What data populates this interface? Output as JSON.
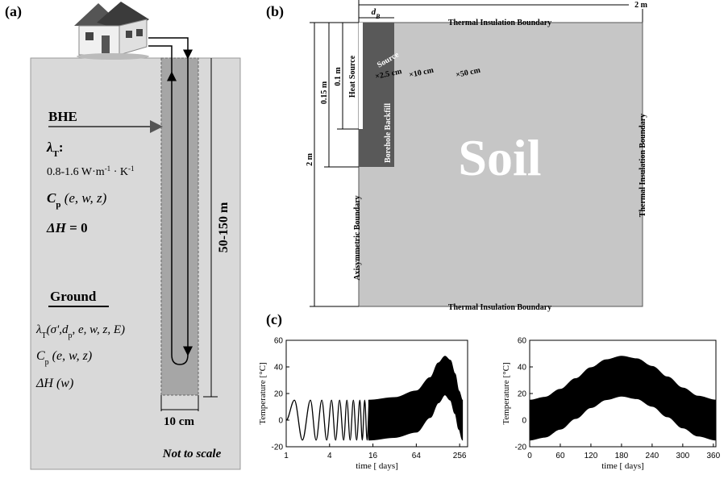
{
  "panel_a": {
    "label": "(a)",
    "bhe": "BHE",
    "lambda": [
      "λ",
      "T",
      ":"
    ],
    "lambda_range": [
      "0.8-1.6 W·m",
      "-1",
      " · K",
      "-1"
    ],
    "cp": [
      "C",
      "p",
      " (e, w, z)"
    ],
    "dh": [
      "ΔH",
      " = 0"
    ],
    "ground": "Ground",
    "g_lambda": [
      "λ",
      "T",
      "(σ',d",
      "p",
      ", e, w, z, E)"
    ],
    "g_cp": [
      "C",
      "p",
      " (e, w, z)"
    ],
    "g_dh": "ΔH (w)",
    "depth": "50-150 m",
    "diameter": "10 cm",
    "note": "Not to scale"
  },
  "panel_b": {
    "label": "(b)",
    "width": "2 m",
    "db": [
      "d",
      "B"
    ],
    "top": "Thermal Insulation Boundary",
    "bottom": "Thermal Insulation Boundary",
    "right": "Thermal Insulation Boundary",
    "left": "Axisymmetric Boundary",
    "soil": "Soil",
    "source": "Source",
    "heat_source": "Heat Source",
    "backfill": "Borehole Backfill",
    "p1": "×2.5 cm",
    "p2": "×10 cm",
    "p3": "×50 cm",
    "d1": "0.1 m",
    "d2": "0.15 m",
    "height": "2 m"
  },
  "panel_c": {
    "label": "(c)"
  },
  "chart_data": [
    {
      "type": "line",
      "x_label": "time [ days]",
      "y_label": "Temperature [°C]",
      "log_x": true,
      "color": "#000000",
      "xlim": [
        1,
        330
      ],
      "xticks": [
        1,
        4,
        16,
        64,
        256
      ],
      "ylim": [
        -20,
        60
      ],
      "yticks": [
        -20,
        0,
        20,
        40,
        60
      ],
      "series": [
        {
          "x": [
            1,
            1.3,
            1.68,
            2.17,
            2.6,
            3.12,
            3.65,
            4.26,
            4.85,
            5.51,
            6.28,
            6.96,
            7.72,
            8.56,
            9.5,
            10.53,
            11.38,
            12.3,
            13.29,
            14.36
          ],
          "values": [
            0,
            15,
            -15,
            15,
            -15,
            15,
            -15,
            15,
            -15,
            15,
            -15,
            15,
            -15,
            15,
            -15,
            15,
            -15,
            15,
            -15,
            15
          ]
        }
      ],
      "band": {
        "x": [
          14,
          32,
          64,
          100,
          130,
          160,
          190,
          220,
          250,
          280
        ],
        "upper": [
          15,
          17,
          22,
          32,
          43,
          48,
          45,
          35,
          22,
          15
        ],
        "lower": [
          -15,
          -13,
          -9,
          2,
          13,
          19,
          15,
          5,
          -7,
          -15
        ]
      }
    },
    {
      "type": "band",
      "x_label": "time [ days]",
      "y_label": "Temperature [°C]",
      "color": "#000000",
      "xlim": [
        0,
        365
      ],
      "xticks": [
        0,
        60,
        120,
        180,
        240,
        300,
        360
      ],
      "ylim": [
        -20,
        60
      ],
      "yticks": [
        -20,
        0,
        20,
        40,
        60
      ],
      "band": {
        "x": [
          0,
          30,
          60,
          90,
          120,
          150,
          180,
          210,
          240,
          270,
          300,
          330,
          365
        ],
        "upper": [
          15,
          17.2,
          23.2,
          31.2,
          39.4,
          45.4,
          48,
          46.1,
          40.4,
          32.5,
          24.2,
          18,
          15
        ],
        "lower": [
          -15,
          -12.8,
          -6.8,
          1.2,
          9.4,
          15.4,
          18,
          16.1,
          10.4,
          2.5,
          -5.8,
          -12,
          -15
        ]
      }
    }
  ]
}
